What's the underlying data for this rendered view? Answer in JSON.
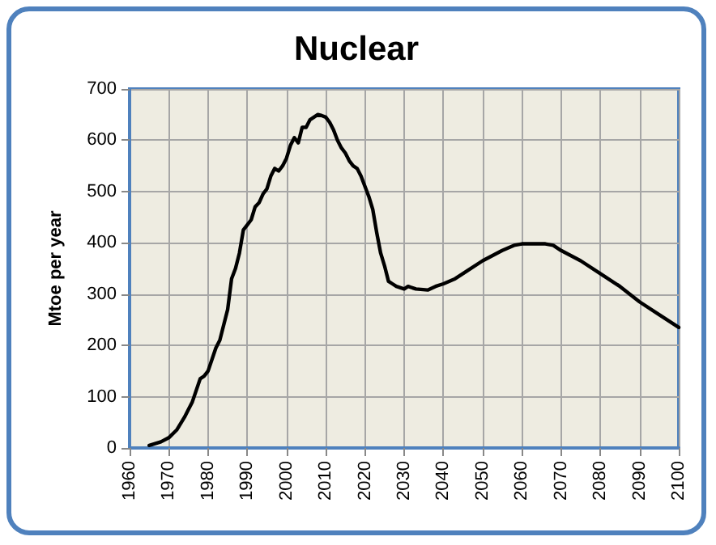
{
  "chart_data": {
    "type": "line",
    "title": "Nuclear",
    "ylabel": "Mtoe per year",
    "x": [
      1965,
      1968,
      1970,
      1972,
      1974,
      1976,
      1978,
      1979,
      1980,
      1982,
      1983,
      1985,
      1986,
      1987,
      1988,
      1989,
      1990,
      1991,
      1992,
      1993,
      1994,
      1995,
      1996,
      1997,
      1998,
      1999,
      2000,
      2001,
      2002,
      2003,
      2004,
      2005,
      2006,
      2007,
      2008,
      2009,
      2010,
      2011,
      2012,
      2013,
      2014,
      2015,
      2016,
      2017,
      2018,
      2019,
      2020,
      2021,
      2022,
      2023,
      2024,
      2025,
      2026,
      2027,
      2028,
      2030,
      2031,
      2033,
      2036,
      2038,
      2040,
      2043,
      2046,
      2050,
      2055,
      2058,
      2060,
      2066,
      2068,
      2070,
      2075,
      2080,
      2085,
      2090,
      2095,
      2100
    ],
    "series": [
      {
        "color": "#000000",
        "values": [
          5,
          12,
          20,
          35,
          60,
          90,
          135,
          140,
          150,
          195,
          210,
          270,
          330,
          350,
          380,
          425,
          435,
          445,
          470,
          478,
          495,
          505,
          530,
          545,
          540,
          550,
          565,
          590,
          605,
          595,
          625,
          625,
          640,
          645,
          650,
          648,
          645,
          635,
          620,
          600,
          585,
          575,
          560,
          550,
          545,
          530,
          510,
          490,
          465,
          420,
          380,
          355,
          325,
          320,
          315,
          310,
          315,
          310,
          308,
          315,
          320,
          330,
          345,
          365,
          385,
          395,
          398,
          398,
          395,
          385,
          365,
          340,
          315,
          285,
          260,
          235
        ]
      }
    ],
    "xlim": [
      1960,
      2100
    ],
    "xticks": [
      1960,
      1970,
      1980,
      1990,
      2000,
      2010,
      2020,
      2030,
      2040,
      2050,
      2060,
      2070,
      2080,
      2090,
      2100
    ],
    "ylim": [
      0,
      700
    ],
    "yticks": [
      0,
      100,
      200,
      300,
      400,
      500,
      600,
      700
    ],
    "grid": true,
    "marker": "none",
    "line_style": "solid"
  }
}
